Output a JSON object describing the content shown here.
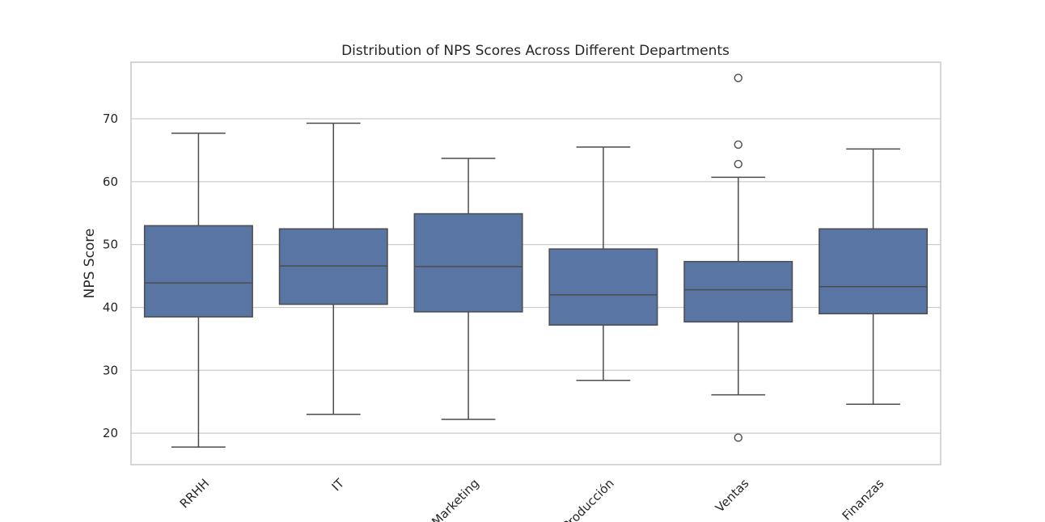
{
  "chart_data": {
    "type": "box",
    "title": "Distribution of NPS Scores Across Different Departments",
    "xlabel": "",
    "ylabel": "NPS Score",
    "ylim": [
      15,
      79
    ],
    "yticks": [
      20,
      30,
      40,
      50,
      60,
      70
    ],
    "grid": true,
    "box_color": "#5875a4",
    "line_color": "#4c4c4c",
    "categories": [
      "RRHH",
      "IT",
      "Marketing",
      "Producción",
      "Ventas",
      "Finanzas"
    ],
    "boxes": [
      {
        "category": "RRHH",
        "whisker_low": 17.8,
        "q1": 38.5,
        "median": 43.9,
        "q3": 53.0,
        "whisker_high": 67.7,
        "outliers": []
      },
      {
        "category": "IT",
        "whisker_low": 23.0,
        "q1": 40.5,
        "median": 46.6,
        "q3": 52.5,
        "whisker_high": 69.3,
        "outliers": []
      },
      {
        "category": "Marketing",
        "whisker_low": 22.2,
        "q1": 39.3,
        "median": 46.5,
        "q3": 54.9,
        "whisker_high": 63.7,
        "outliers": []
      },
      {
        "category": "Producción",
        "whisker_low": 28.4,
        "q1": 37.2,
        "median": 42.0,
        "q3": 49.3,
        "whisker_high": 65.5,
        "outliers": []
      },
      {
        "category": "Ventas",
        "whisker_low": 26.1,
        "q1": 37.7,
        "median": 42.8,
        "q3": 47.3,
        "whisker_high": 60.7,
        "outliers": [
          76.5,
          65.9,
          62.8,
          19.3
        ]
      },
      {
        "category": "Finanzas",
        "whisker_low": 24.6,
        "q1": 39.0,
        "median": 43.3,
        "q3": 52.5,
        "whisker_high": 65.2,
        "outliers": []
      }
    ]
  }
}
